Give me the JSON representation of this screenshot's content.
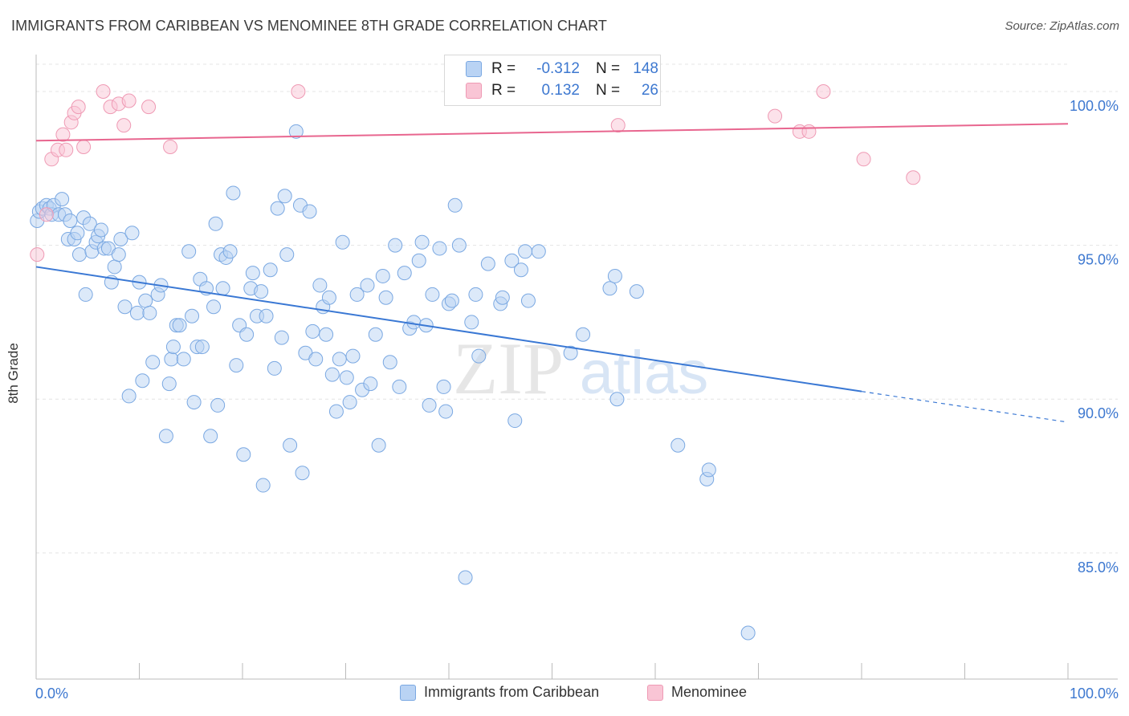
{
  "header": {
    "title": "IMMIGRANTS FROM CARIBBEAN VS MENOMINEE 8TH GRADE CORRELATION CHART",
    "source": "Source: ZipAtlas.com"
  },
  "watermark": {
    "zip": "ZIP",
    "atlas": "atlas"
  },
  "legend": {
    "rows": [
      {
        "r_label": "R =",
        "r_value": "-0.312",
        "n_label": "N =",
        "n_value": "148",
        "color": "#7aa8e2"
      },
      {
        "r_label": "R =",
        "r_value": "0.132",
        "n_label": "N =",
        "n_value": "26",
        "color": "#ef9ab4"
      }
    ]
  },
  "bottom_legend": {
    "items": [
      {
        "label": "Immigrants from Caribbean",
        "color": "#7aa8e2"
      },
      {
        "label": "Menominee",
        "color": "#ef9ab4"
      }
    ]
  },
  "chart_data": {
    "type": "scatter",
    "title": "IMMIGRANTS FROM CARIBBEAN VS MENOMINEE 8TH GRADE CORRELATION CHART",
    "xlabel": "",
    "ylabel": "8th Grade",
    "xlim": [
      0,
      100
    ],
    "ylim": [
      80.9,
      101.2
    ],
    "x_tick_labels": [
      {
        "value": 0,
        "label": "0.0%"
      },
      {
        "value": 100,
        "label": "100.0%"
      }
    ],
    "y_tick_labels": [
      {
        "value": 100,
        "label": "100.0%"
      },
      {
        "value": 95,
        "label": "95.0%"
      },
      {
        "value": 90,
        "label": "90.0%"
      },
      {
        "value": 85,
        "label": "85.0%"
      }
    ],
    "grid": true,
    "series": [
      {
        "name": "Immigrants from Caribbean",
        "color": "#7aa8e2",
        "trend": {
          "x0": 0,
          "y0": 94.3,
          "x1": 80,
          "y1": 90.25,
          "dashed_to_x": 100,
          "dashed_to_y": 89.25
        },
        "points": [
          [
            0.1,
            95.8
          ],
          [
            0.3,
            96.1
          ],
          [
            0.6,
            96.2
          ],
          [
            1.0,
            96.3
          ],
          [
            1.3,
            96.2
          ],
          [
            1.5,
            96.0
          ],
          [
            1.7,
            96.3
          ],
          [
            2.2,
            96.0
          ],
          [
            2.5,
            96.5
          ],
          [
            2.8,
            96.0
          ],
          [
            3.1,
            95.2
          ],
          [
            3.3,
            95.8
          ],
          [
            3.7,
            95.2
          ],
          [
            4.0,
            95.4
          ],
          [
            4.2,
            94.7
          ],
          [
            4.6,
            95.9
          ],
          [
            4.8,
            93.4
          ],
          [
            5.2,
            95.7
          ],
          [
            5.4,
            94.8
          ],
          [
            5.8,
            95.1
          ],
          [
            6.0,
            95.3
          ],
          [
            6.3,
            95.5
          ],
          [
            6.6,
            94.9
          ],
          [
            7.0,
            94.9
          ],
          [
            7.3,
            93.8
          ],
          [
            7.6,
            94.3
          ],
          [
            8.0,
            94.7
          ],
          [
            8.2,
            95.2
          ],
          [
            8.6,
            93.0
          ],
          [
            9.0,
            90.1
          ],
          [
            9.3,
            95.4
          ],
          [
            9.8,
            92.8
          ],
          [
            10.0,
            93.8
          ],
          [
            10.3,
            90.6
          ],
          [
            10.6,
            93.2
          ],
          [
            11.0,
            92.8
          ],
          [
            11.3,
            91.2
          ],
          [
            11.8,
            93.4
          ],
          [
            12.1,
            93.7
          ],
          [
            12.6,
            88.8
          ],
          [
            12.9,
            90.5
          ],
          [
            13.1,
            91.3
          ],
          [
            13.3,
            91.7
          ],
          [
            13.6,
            92.4
          ],
          [
            13.9,
            92.4
          ],
          [
            14.3,
            91.3
          ],
          [
            14.8,
            94.8
          ],
          [
            15.1,
            92.7
          ],
          [
            15.3,
            89.9
          ],
          [
            15.6,
            91.7
          ],
          [
            15.9,
            93.9
          ],
          [
            16.1,
            91.7
          ],
          [
            16.5,
            93.6
          ],
          [
            16.9,
            88.8
          ],
          [
            17.2,
            93.0
          ],
          [
            17.4,
            95.7
          ],
          [
            17.6,
            89.8
          ],
          [
            17.9,
            94.7
          ],
          [
            18.1,
            93.6
          ],
          [
            18.4,
            94.6
          ],
          [
            18.8,
            94.8
          ],
          [
            19.1,
            96.7
          ],
          [
            19.4,
            91.1
          ],
          [
            19.7,
            92.4
          ],
          [
            20.1,
            88.2
          ],
          [
            20.4,
            92.1
          ],
          [
            20.8,
            93.6
          ],
          [
            21.0,
            94.1
          ],
          [
            21.4,
            92.7
          ],
          [
            21.8,
            93.5
          ],
          [
            22.0,
            87.2
          ],
          [
            22.3,
            92.7
          ],
          [
            22.7,
            94.2
          ],
          [
            23.1,
            91.0
          ],
          [
            23.4,
            96.2
          ],
          [
            23.8,
            92.0
          ],
          [
            24.1,
            96.6
          ],
          [
            24.3,
            94.7
          ],
          [
            24.6,
            88.5
          ],
          [
            25.2,
            98.7
          ],
          [
            25.6,
            96.3
          ],
          [
            25.8,
            87.6
          ],
          [
            26.1,
            91.5
          ],
          [
            26.5,
            96.1
          ],
          [
            26.8,
            92.2
          ],
          [
            27.1,
            91.3
          ],
          [
            27.5,
            93.7
          ],
          [
            27.8,
            93.0
          ],
          [
            28.1,
            92.1
          ],
          [
            28.4,
            93.3
          ],
          [
            28.7,
            90.8
          ],
          [
            29.1,
            89.6
          ],
          [
            29.4,
            91.3
          ],
          [
            29.7,
            95.1
          ],
          [
            30.1,
            90.7
          ],
          [
            30.4,
            89.9
          ],
          [
            30.7,
            91.4
          ],
          [
            31.1,
            93.4
          ],
          [
            31.6,
            90.3
          ],
          [
            32.1,
            93.7
          ],
          [
            32.4,
            90.5
          ],
          [
            32.9,
            92.1
          ],
          [
            33.2,
            88.5
          ],
          [
            33.6,
            94.0
          ],
          [
            33.9,
            93.3
          ],
          [
            34.3,
            91.2
          ],
          [
            34.8,
            95.0
          ],
          [
            35.2,
            90.4
          ],
          [
            35.7,
            94.1
          ],
          [
            36.2,
            92.3
          ],
          [
            36.6,
            92.5
          ],
          [
            37.1,
            94.5
          ],
          [
            37.4,
            95.1
          ],
          [
            37.8,
            92.4
          ],
          [
            38.1,
            89.8
          ],
          [
            38.4,
            93.4
          ],
          [
            39.1,
            94.9
          ],
          [
            39.5,
            90.4
          ],
          [
            39.7,
            89.6
          ],
          [
            40.0,
            93.1
          ],
          [
            40.3,
            93.2
          ],
          [
            40.6,
            96.3
          ],
          [
            41.0,
            95.0
          ],
          [
            41.6,
            84.2
          ],
          [
            42.2,
            92.5
          ],
          [
            42.6,
            93.4
          ],
          [
            42.9,
            91.4
          ],
          [
            43.8,
            94.4
          ],
          [
            45.0,
            93.1
          ],
          [
            45.2,
            93.3
          ],
          [
            46.1,
            94.5
          ],
          [
            46.4,
            89.3
          ],
          [
            47.0,
            94.2
          ],
          [
            47.4,
            94.8
          ],
          [
            47.7,
            93.2
          ],
          [
            48.7,
            94.8
          ],
          [
            51.8,
            91.5
          ],
          [
            53.0,
            92.1
          ],
          [
            55.6,
            93.6
          ],
          [
            56.1,
            94.0
          ],
          [
            56.3,
            90.0
          ],
          [
            58.2,
            93.5
          ],
          [
            62.2,
            88.5
          ],
          [
            65.0,
            87.4
          ],
          [
            65.2,
            87.7
          ],
          [
            69.0,
            82.4
          ]
        ]
      },
      {
        "name": "Menominee",
        "color": "#ef9ab4",
        "trend": {
          "x0": 0,
          "y0": 98.4,
          "x1": 100,
          "y1": 98.95
        },
        "points": [
          [
            0.1,
            94.7
          ],
          [
            1.0,
            96.0
          ],
          [
            1.5,
            97.8
          ],
          [
            2.1,
            98.1
          ],
          [
            2.6,
            98.6
          ],
          [
            2.9,
            98.1
          ],
          [
            3.4,
            99.0
          ],
          [
            3.7,
            99.3
          ],
          [
            4.1,
            99.5
          ],
          [
            4.6,
            98.2
          ],
          [
            6.5,
            100.0
          ],
          [
            7.2,
            99.5
          ],
          [
            8.0,
            99.6
          ],
          [
            8.5,
            98.9
          ],
          [
            9.0,
            99.7
          ],
          [
            10.9,
            99.5
          ],
          [
            13.0,
            98.2
          ],
          [
            25.4,
            100.0
          ],
          [
            56.4,
            98.9
          ],
          [
            71.6,
            99.2
          ],
          [
            74.0,
            98.7
          ],
          [
            74.9,
            98.7
          ],
          [
            76.3,
            100.0
          ],
          [
            80.2,
            97.8
          ],
          [
            85.0,
            97.2
          ]
        ]
      }
    ]
  }
}
